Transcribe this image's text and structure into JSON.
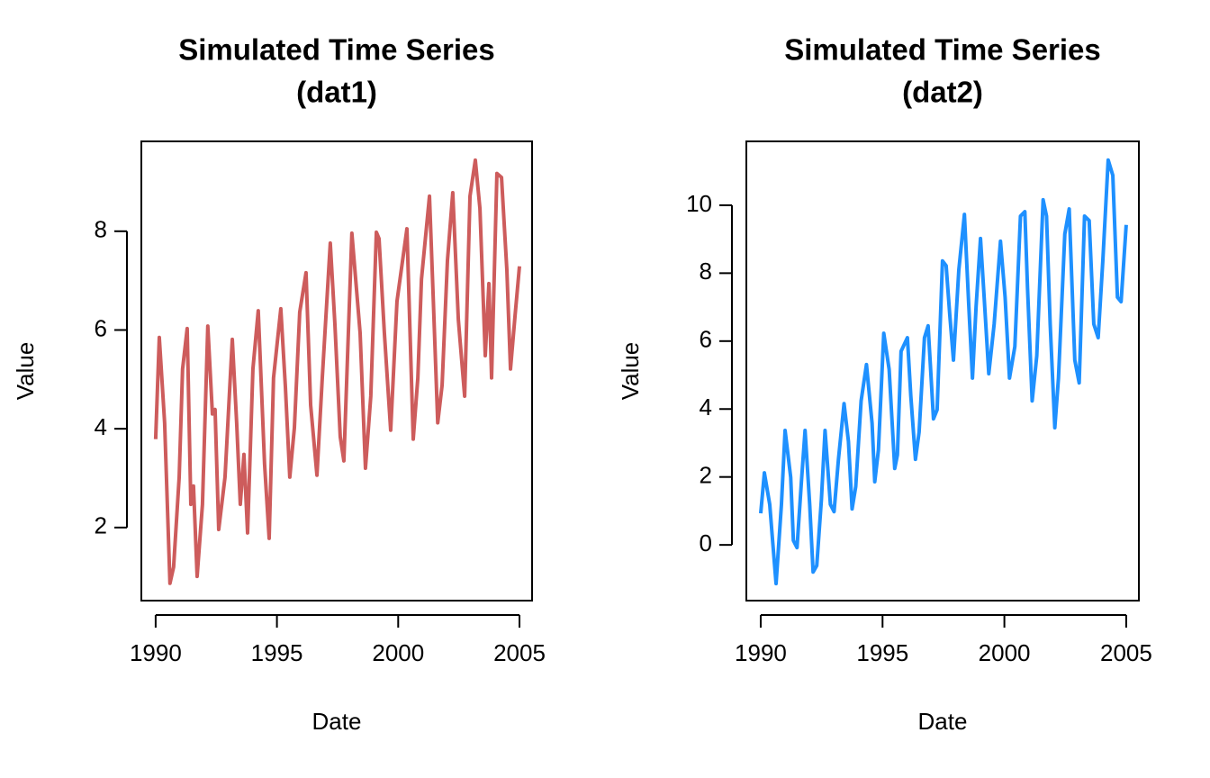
{
  "chart_data": [
    {
      "type": "line",
      "title": [
        "Simulated Time Series",
        "(dat1)"
      ],
      "xlabel": "Date",
      "ylabel": "Value",
      "color": "#cd5c5c",
      "xlim": [
        1989.41,
        2005.52
      ],
      "ylim": [
        0.52,
        9.82
      ],
      "xticks": [
        1990,
        1995,
        2000,
        2005
      ],
      "yticks": [
        2,
        4,
        6,
        8
      ],
      "x": [
        1990.0,
        1990.15,
        1990.37,
        1990.59,
        1990.74,
        1990.97,
        1991.11,
        1991.3,
        1991.45,
        1991.56,
        1991.71,
        1991.93,
        1992.15,
        1992.34,
        1992.45,
        1992.6,
        1992.86,
        1993.16,
        1993.34,
        1993.49,
        1993.64,
        1993.79,
        1994.01,
        1994.23,
        1994.49,
        1994.68,
        1994.86,
        1995.16,
        1995.35,
        1995.53,
        1995.72,
        1995.94,
        1996.2,
        1996.39,
        1996.65,
        1996.87,
        1997.2,
        1997.39,
        1997.61,
        1997.76,
        1998.09,
        1998.43,
        1998.65,
        1998.87,
        1999.1,
        1999.21,
        1999.43,
        1999.69,
        1999.95,
        2000.36,
        2000.62,
        2000.81,
        2000.96,
        2001.29,
        2001.44,
        2001.63,
        2001.81,
        2002.03,
        2002.25,
        2002.48,
        2002.74,
        2002.96,
        2003.18,
        2003.37,
        2003.59,
        2003.74,
        2003.85,
        2004.07,
        2004.26,
        2004.48,
        2004.63,
        2004.82,
        2005.0
      ],
      "values": [
        3.79,
        5.85,
        4.12,
        0.87,
        1.2,
        3.02,
        5.21,
        6.03,
        2.47,
        2.84,
        1.01,
        2.47,
        6.08,
        4.3,
        4.39,
        1.96,
        3.02,
        5.81,
        4.12,
        2.47,
        3.48,
        1.89,
        5.21,
        6.39,
        3.29,
        1.78,
        5.03,
        6.43,
        4.84,
        3.02,
        4.02,
        6.36,
        7.16,
        4.48,
        3.06,
        5.03,
        7.76,
        6.12,
        3.84,
        3.35,
        7.96,
        5.94,
        3.2,
        4.66,
        7.98,
        7.85,
        5.94,
        3.97,
        6.58,
        8.05,
        3.79,
        5.03,
        7.03,
        8.71,
        6.71,
        4.12,
        4.88,
        7.4,
        8.78,
        6.21,
        4.66,
        8.71,
        9.44,
        8.46,
        5.48,
        6.94,
        5.03,
        9.17,
        9.09,
        7.22,
        5.21,
        6.3,
        7.29
      ]
    },
    {
      "type": "line",
      "title": [
        "Simulated Time Series",
        "(dat2)"
      ],
      "xlabel": "Date",
      "ylabel": "Value",
      "color": "#1e90ff",
      "xlim": [
        1989.41,
        2005.52
      ],
      "ylim": [
        -1.64,
        11.88
      ],
      "xticks": [
        1990,
        1995,
        2000,
        2005
      ],
      "yticks": [
        0,
        2,
        4,
        6,
        8,
        10
      ],
      "x": [
        1990.0,
        1990.15,
        1990.37,
        1990.48,
        1990.63,
        1990.85,
        1991.0,
        1991.23,
        1991.34,
        1991.49,
        1991.67,
        1991.82,
        1992.01,
        1992.15,
        1992.3,
        1992.49,
        1992.64,
        1992.86,
        1993.01,
        1993.19,
        1993.42,
        1993.6,
        1993.75,
        1993.9,
        1994.12,
        1994.34,
        1994.57,
        1994.68,
        1994.83,
        1995.05,
        1995.27,
        1995.5,
        1995.61,
        1995.76,
        1996.02,
        1996.16,
        1996.35,
        1996.5,
        1996.72,
        1996.87,
        1997.09,
        1997.24,
        1997.46,
        1997.61,
        1997.76,
        1997.91,
        1998.13,
        1998.36,
        1998.54,
        1998.69,
        1998.84,
        1999.02,
        1999.17,
        1999.36,
        1999.58,
        1999.84,
        2000.03,
        2000.21,
        2000.43,
        2000.66,
        2000.84,
        2000.95,
        2001.14,
        2001.33,
        2001.59,
        2001.73,
        2001.88,
        2002.07,
        2002.22,
        2002.48,
        2002.66,
        2002.89,
        2003.07,
        2003.29,
        2003.48,
        2003.67,
        2003.85,
        2004.04,
        2004.26,
        2004.45,
        2004.64,
        2004.79,
        2005.0
      ],
      "values": [
        0.93,
        2.12,
        1.19,
        0.19,
        -1.14,
        1.19,
        3.37,
        1.99,
        0.13,
        -0.08,
        1.86,
        3.37,
        1.19,
        -0.8,
        -0.61,
        1.33,
        3.37,
        1.19,
        0.98,
        2.52,
        4.16,
        3.05,
        1.06,
        1.72,
        4.24,
        5.31,
        3.58,
        1.86,
        2.79,
        6.23,
        5.17,
        2.25,
        2.65,
        5.7,
        6.1,
        4.38,
        2.52,
        3.32,
        6.1,
        6.45,
        3.71,
        3.98,
        8.36,
        8.22,
        6.76,
        5.44,
        8.09,
        9.73,
        7.03,
        4.91,
        7.03,
        9.02,
        7.29,
        5.04,
        6.5,
        8.94,
        7.29,
        4.91,
        5.84,
        9.68,
        9.81,
        7.56,
        4.24,
        5.57,
        10.16,
        9.68,
        6.5,
        3.45,
        4.91,
        9.15,
        9.89,
        5.44,
        4.77,
        9.68,
        9.55,
        6.5,
        6.1,
        8.36,
        11.33,
        10.88,
        7.29,
        7.16,
        9.42
      ]
    }
  ]
}
